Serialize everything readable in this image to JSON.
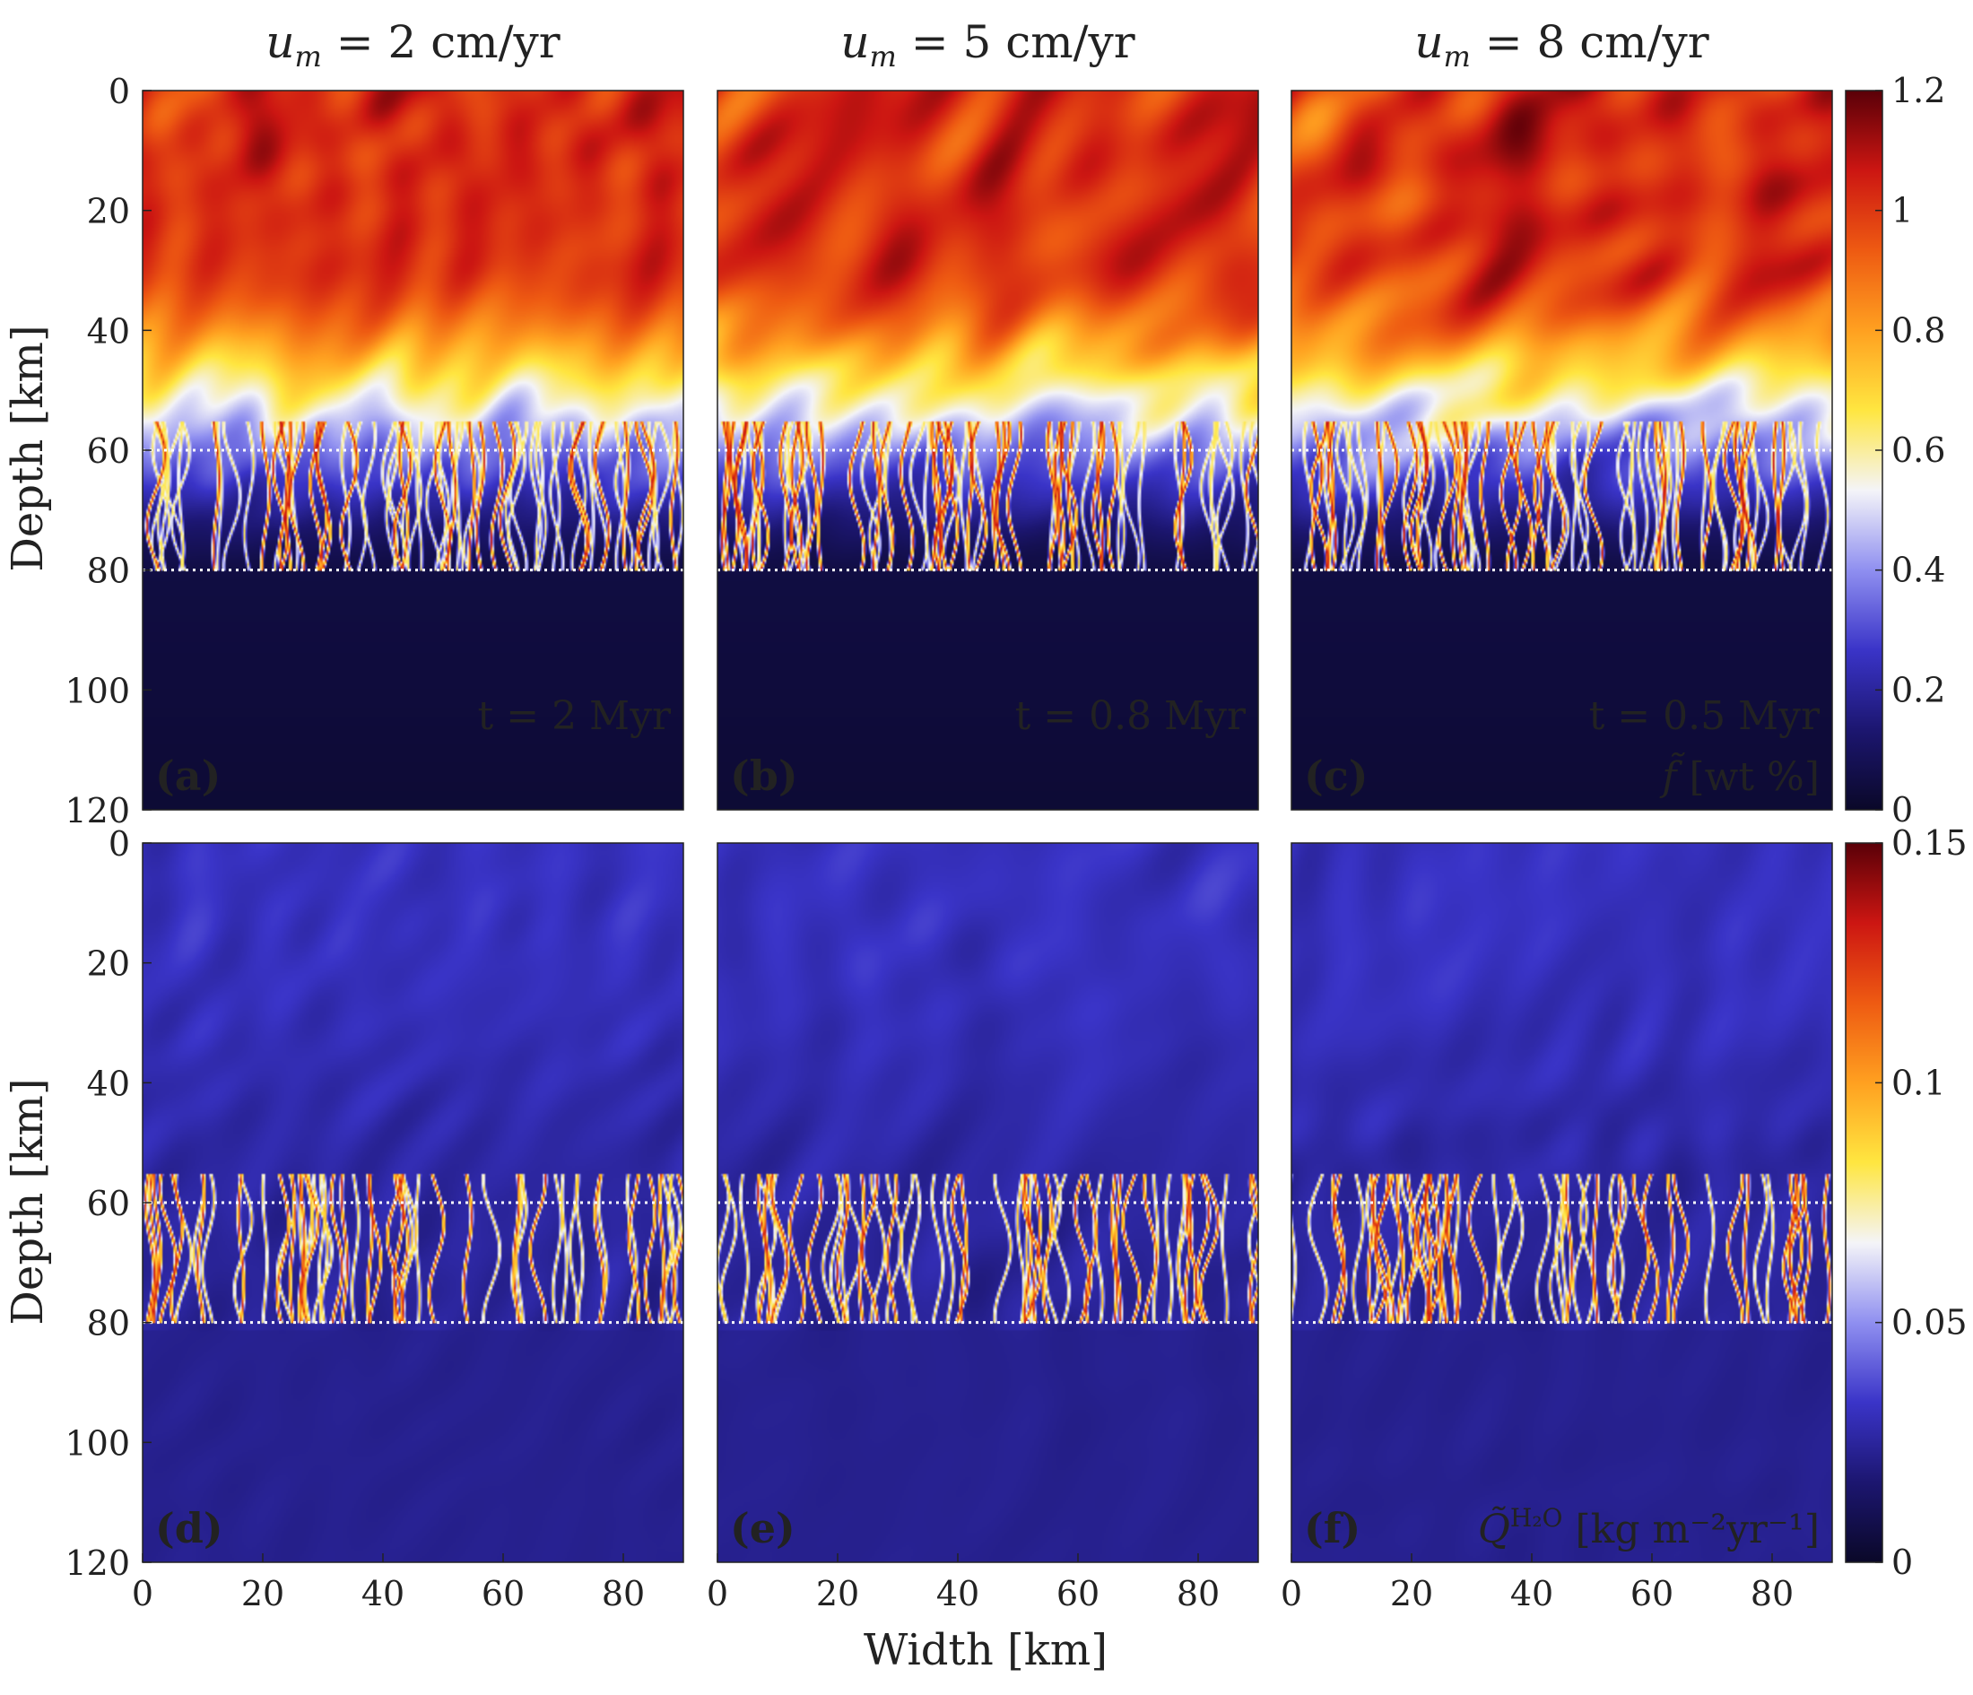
{
  "figure": {
    "x_label": "Width [km]",
    "y_label": "Depth [km]"
  },
  "chart_data": {
    "type": "heatmap",
    "xlabel": "Width [km]",
    "ylabel": "Depth [km]",
    "xlim": [
      0,
      90
    ],
    "ylim": [
      120,
      0
    ],
    "x_ticks": [
      0,
      20,
      40,
      60,
      80
    ],
    "y_ticks": [
      0,
      20,
      40,
      60,
      80,
      100,
      120
    ],
    "reference_depths_km": [
      60,
      80
    ],
    "columns": [
      {
        "title_var": "u",
        "title_sub": "m",
        "title_rest": " = 2 cm/yr",
        "time": "t = 2 Myr"
      },
      {
        "title_var": "u",
        "title_sub": "m",
        "title_rest": " = 5 cm/yr",
        "time": "t = 0.8 Myr"
      },
      {
        "title_var": "u",
        "title_sub": "m",
        "title_rest": " = 8 cm/yr",
        "time": "t = 0.5 Myr"
      }
    ],
    "rows": [
      {
        "panels": [
          "(a)",
          "(b)",
          "(c)"
        ],
        "variable": "f̃",
        "variable_unit": " [wt %]",
        "colorbar_range": [
          0,
          1.2
        ],
        "colorbar_ticks": [
          "0",
          "0.2",
          "0.4",
          "0.6",
          "0.8",
          "1",
          "1.2"
        ],
        "colorbar_values": [
          0,
          0.2,
          0.4,
          0.6,
          0.8,
          1.0,
          1.2
        ]
      },
      {
        "panels": [
          "(d)",
          "(e)",
          "(f)"
        ],
        "variable": "Q̃",
        "variable_sup": "H₂O",
        "variable_unit": " [kg m⁻²yr⁻¹]",
        "colorbar_range": [
          0,
          0.15
        ],
        "colorbar_ticks": [
          "0",
          "0.05",
          "0.1",
          "0.15"
        ],
        "colorbar_values": [
          0,
          0.05,
          0.1,
          0.15
        ]
      }
    ]
  },
  "colors": {
    "map_stops": [
      "#0a0828",
      "#1c1670",
      "#3a34c8",
      "#8f8ff0",
      "#f4f4f8",
      "#ffe640",
      "#ffa020",
      "#ee5a12",
      "#cc1612",
      "#5a0008"
    ],
    "dotted_line": "#ffffff",
    "axis": "#222222"
  }
}
